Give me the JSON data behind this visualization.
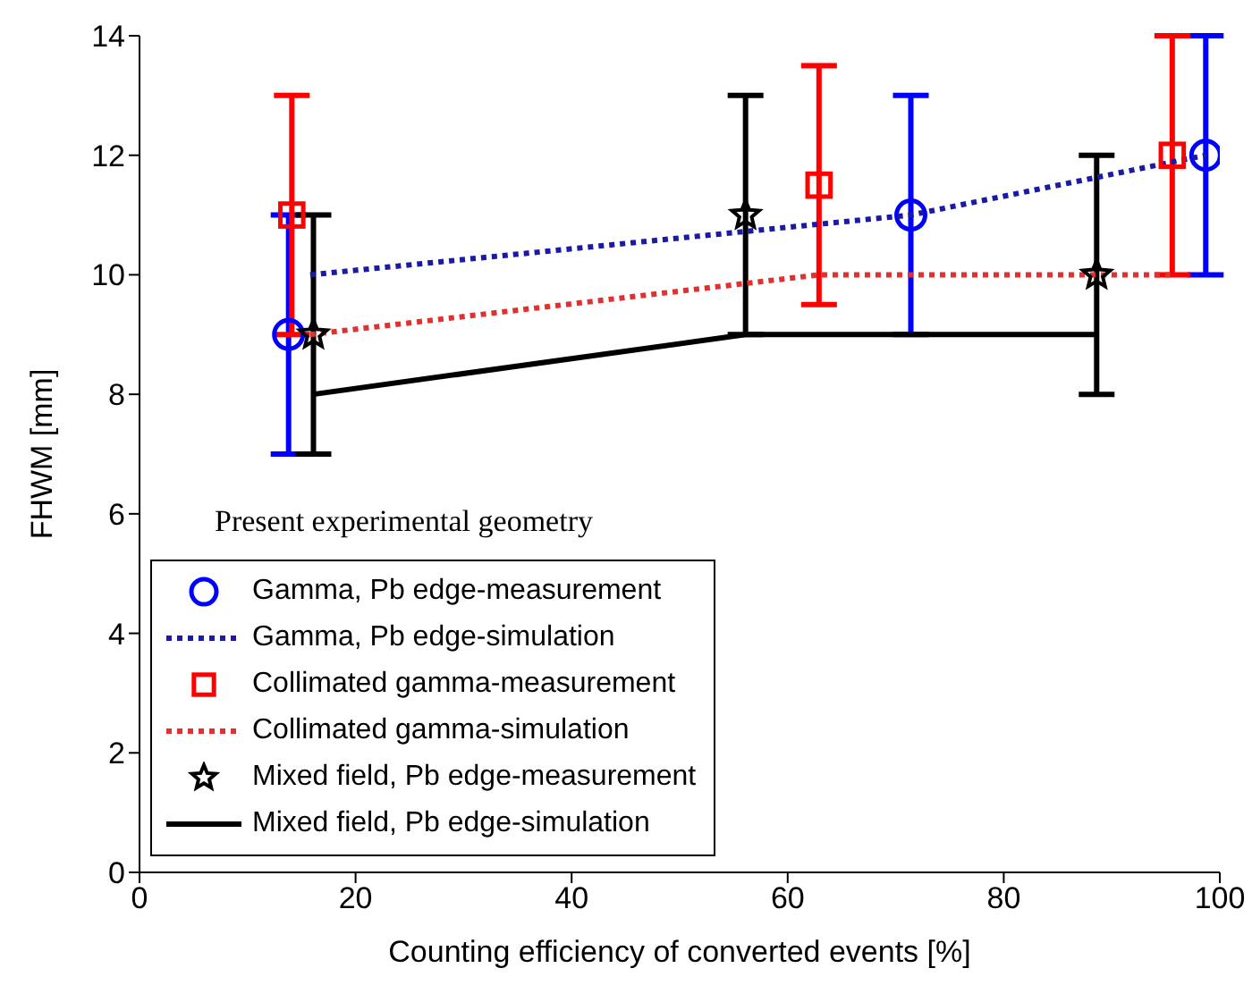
{
  "chart_data": {
    "type": "scatter",
    "xlabel": "Counting efficiency of converted events [%]",
    "ylabel": "FHWM [mm]",
    "xlim": [
      0,
      100
    ],
    "xticks": [
      0,
      20,
      40,
      60,
      80,
      100
    ],
    "ylim": [
      0,
      14
    ],
    "yticks": [
      0,
      2,
      4,
      6,
      8,
      10,
      12,
      14
    ],
    "grid": false,
    "legend": "bottom left",
    "annotations": [
      "Present experimental geometry"
    ],
    "series": [
      {
        "name": "Gamma, Pb edge-measurement",
        "marker": "circle",
        "color": "#0000ff",
        "x": [
          13.8,
          71.4,
          98.7
        ],
        "values": [
          9,
          11,
          12
        ],
        "errors": [
          [
            7,
            11
          ],
          [
            9,
            13
          ],
          [
            10,
            14
          ]
        ]
      },
      {
        "name": "Gamma, Pb edge-simulation",
        "type": "line",
        "marker": "none",
        "line_style": "dotted",
        "color": "#1a1aa6",
        "x": [
          15.8,
          71.4,
          98.7
        ],
        "values": [
          10,
          11,
          12
        ]
      },
      {
        "name": "Collimated gamma-measurement",
        "marker": "square",
        "color": "#ff0000",
        "x": [
          14.1,
          62.9,
          95.6
        ],
        "values": [
          11,
          11.5,
          12
        ],
        "errors": [
          [
            9,
            13
          ],
          [
            9.5,
            13.5
          ],
          [
            10,
            14
          ]
        ]
      },
      {
        "name": "Collimated gamma-simulation",
        "type": "line",
        "marker": "none",
        "line_style": "dotted",
        "color": "#e03030",
        "x": [
          15.8,
          62.9,
          95.6
        ],
        "values": [
          9,
          10,
          10
        ]
      },
      {
        "name": "Mixed field, Pb edge-measurement",
        "marker": "star",
        "color": "#000000",
        "x": [
          16.1,
          56.1,
          88.6
        ],
        "values": [
          9,
          11,
          10
        ],
        "errors": [
          [
            7,
            11
          ],
          [
            9,
            13
          ],
          [
            8,
            12
          ]
        ]
      },
      {
        "name": "Mixed field, Pb edge-simulation",
        "type": "line",
        "marker": "none",
        "line_style": "solid",
        "color": "#000000",
        "x": [
          16.1,
          56.1,
          88.6
        ],
        "values": [
          8,
          9,
          9
        ]
      }
    ]
  }
}
